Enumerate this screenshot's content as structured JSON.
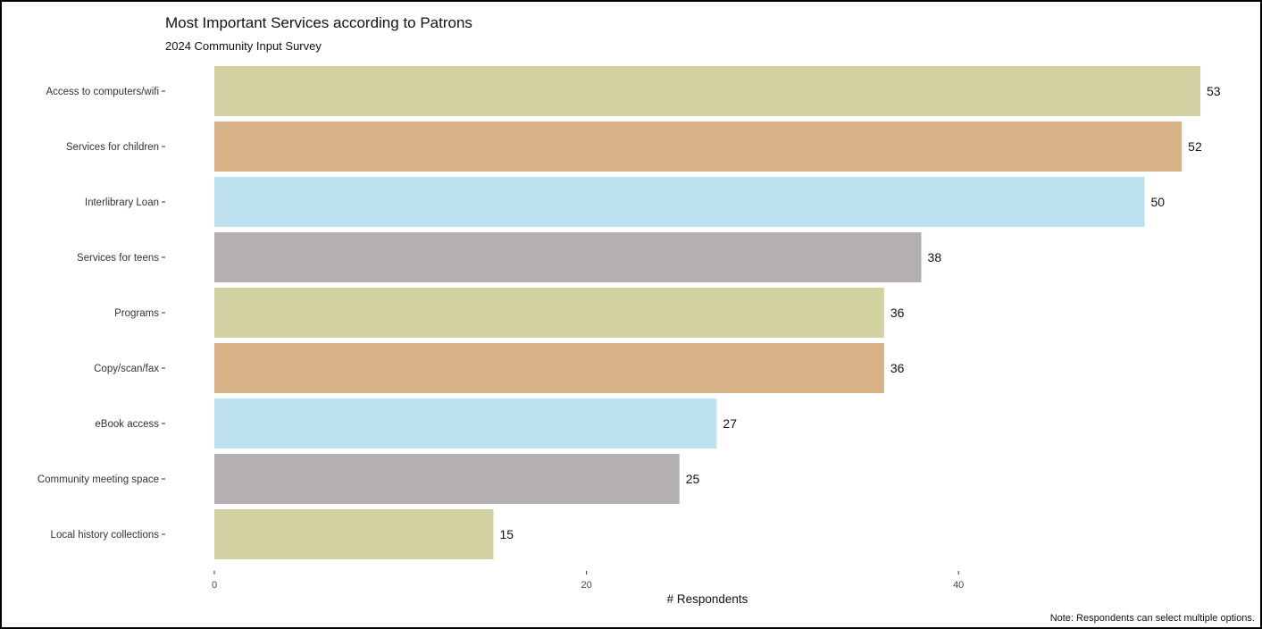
{
  "chart_data": {
    "type": "bar",
    "orientation": "horizontal",
    "title": "Most Important Services according to Patrons",
    "subtitle": "2024 Community Input Survey",
    "xlabel": "# Respondents",
    "ylabel": "",
    "note": "Note: Respondents can select multiple options.",
    "categories": [
      "Access to computers/wifi",
      "Services for children",
      "Interlibrary Loan",
      "Services for teens",
      "Programs",
      "Copy/scan/fax",
      "eBook access",
      "Community meeting space",
      "Local history collections"
    ],
    "values": [
      53,
      52,
      50,
      38,
      36,
      36,
      27,
      25,
      15
    ],
    "colors": [
      "#D3D2A2",
      "#D6B286",
      "#BDE1EF",
      "#B4AFB3",
      "#D3D2A2",
      "#D6B286",
      "#BDE1EF",
      "#B4AFB3",
      "#D3D2A2"
    ],
    "xlim": [
      0,
      55
    ],
    "xticks": [
      0,
      20,
      40
    ],
    "grid": false,
    "legend": "none"
  }
}
